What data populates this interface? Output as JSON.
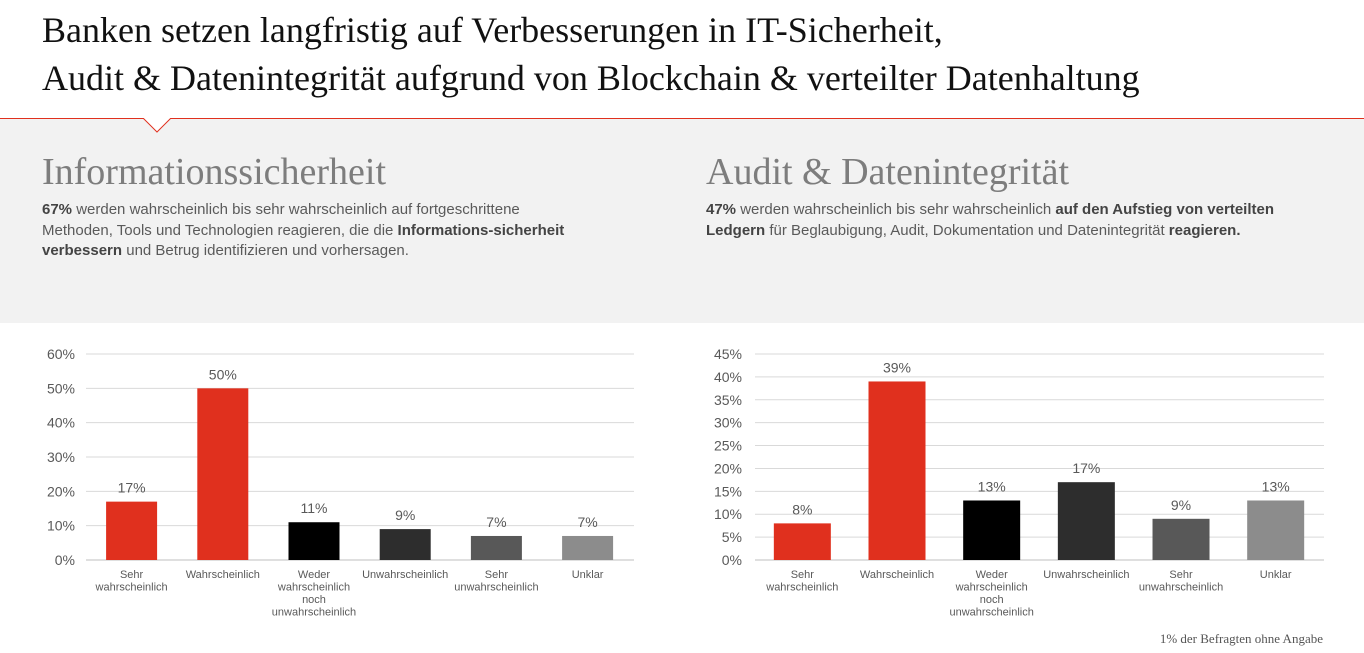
{
  "header": {
    "title_line1": "Banken setzen langfristig auf Verbesserungen in IT-Sicherheit,",
    "title_line2": "Audit & Datenintegrität aufgrund von Blockchain & verteilter Datenhaltung"
  },
  "colors": {
    "accent": "#e0301e",
    "band": "#f2f2f2"
  },
  "sections": [
    {
      "title": "Informationssicherheit",
      "text_b1": "67%",
      "text_t1": " werden wahrscheinlich bis sehr wahrscheinlich auf fortgeschrittene Methoden, Tools und Technologien reagieren, die die ",
      "text_b2": "Informations-sicherheit verbessern",
      "text_t2": " und Betrug identifizieren und vorhersagen."
    },
    {
      "title": "Audit & Datenintegrität",
      "text_b1": "47%",
      "text_t1": " werden wahrscheinlich bis sehr wahrscheinlich ",
      "text_b2": "auf den Aufstieg von verteilten Ledgern",
      "text_t2": " für Beglaubigung, Audit, Dokumentation und Datenintegrität ",
      "text_b3": "reagieren."
    }
  ],
  "footnote": "1% der Befragten ohne Angabe",
  "chart_data": [
    {
      "type": "bar",
      "categories": [
        "Sehr wahrscheinlich",
        "Wahrscheinlich",
        "Weder wahrscheinlich noch unwahrscheinlich",
        "Unwahrscheinlich",
        "Sehr unwahrscheinlich",
        "Unklar"
      ],
      "category_lines": [
        [
          "Sehr",
          "wahrscheinlich"
        ],
        [
          "Wahrscheinlich"
        ],
        [
          "Weder",
          "wahrscheinlich",
          "noch",
          "unwahrscheinlich"
        ],
        [
          "Unwahrscheinlich"
        ],
        [
          "Sehr",
          "unwahrscheinlich"
        ],
        [
          "Unklar"
        ]
      ],
      "values": [
        17,
        50,
        11,
        9,
        7,
        7
      ],
      "data_labels": [
        "17%",
        "50%",
        "11%",
        "9%",
        "7%",
        "7%"
      ],
      "colors": [
        "#e0301e",
        "#e0301e",
        "#000000",
        "#2d2d2d",
        "#585858",
        "#8c8c8c"
      ],
      "yticks": [
        0,
        10,
        20,
        30,
        40,
        50,
        60
      ],
      "ytick_labels": [
        "0%",
        "10%",
        "20%",
        "30%",
        "40%",
        "50%",
        "60%"
      ],
      "ylim": [
        0,
        60
      ],
      "grid": true
    },
    {
      "type": "bar",
      "categories": [
        "Sehr wahrscheinlich",
        "Wahrscheinlich",
        "Weder wahrscheinlich noch unwahrscheinlich",
        "Unwahrscheinlich",
        "Sehr unwahrscheinlich",
        "Unklar"
      ],
      "category_lines": [
        [
          "Sehr",
          "wahrscheinlich"
        ],
        [
          "Wahrscheinlich"
        ],
        [
          "Weder",
          "wahrscheinlich",
          "noch",
          "unwahrscheinlich"
        ],
        [
          "Unwahrscheinlich"
        ],
        [
          "Sehr",
          "unwahrscheinlich"
        ],
        [
          "Unklar"
        ]
      ],
      "values": [
        8,
        39,
        13,
        17,
        9,
        13
      ],
      "data_labels": [
        "8%",
        "39%",
        "13%",
        "17%",
        "9%",
        "13%"
      ],
      "colors": [
        "#e0301e",
        "#e0301e",
        "#000000",
        "#2d2d2d",
        "#585858",
        "#8c8c8c"
      ],
      "yticks": [
        0,
        5,
        10,
        15,
        20,
        25,
        30,
        35,
        40,
        45
      ],
      "ytick_labels": [
        "0%",
        "5%",
        "10%",
        "15%",
        "20%",
        "25%",
        "30%",
        "35%",
        "40%",
        "45%"
      ],
      "ylim": [
        0,
        45
      ],
      "grid": true
    }
  ]
}
